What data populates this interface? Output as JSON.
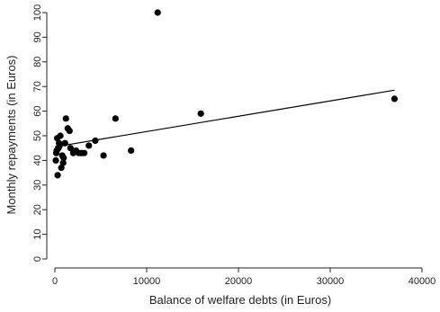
{
  "chart_data": {
    "type": "scatter",
    "title": "",
    "xlabel": "Balance of welfare debts (in Euros)",
    "ylabel": "Monthly repayments (in Euros)",
    "xlim": [
      0,
      40000
    ],
    "ylim": [
      0,
      100
    ],
    "x_ticks": [
      0,
      10000,
      20000,
      30000,
      40000
    ],
    "y_ticks": [
      0,
      10,
      20,
      30,
      40,
      50,
      60,
      70,
      80,
      90,
      100
    ],
    "grid": false,
    "legend": "none",
    "point_color": "#000000",
    "points": [
      {
        "x": 100,
        "y": 40
      },
      {
        "x": 150,
        "y": 43
      },
      {
        "x": 200,
        "y": 44
      },
      {
        "x": 250,
        "y": 49
      },
      {
        "x": 300,
        "y": 34
      },
      {
        "x": 400,
        "y": 45
      },
      {
        "x": 450,
        "y": 47
      },
      {
        "x": 500,
        "y": 46
      },
      {
        "x": 600,
        "y": 50
      },
      {
        "x": 700,
        "y": 37
      },
      {
        "x": 800,
        "y": 42
      },
      {
        "x": 900,
        "y": 39
      },
      {
        "x": 950,
        "y": 41
      },
      {
        "x": 1100,
        "y": 47
      },
      {
        "x": 1200,
        "y": 57
      },
      {
        "x": 1400,
        "y": 53
      },
      {
        "x": 1600,
        "y": 52
      },
      {
        "x": 1700,
        "y": 45
      },
      {
        "x": 2000,
        "y": 43
      },
      {
        "x": 2300,
        "y": 44
      },
      {
        "x": 2600,
        "y": 43
      },
      {
        "x": 2900,
        "y": 43
      },
      {
        "x": 3200,
        "y": 43
      },
      {
        "x": 3700,
        "y": 46
      },
      {
        "x": 4400,
        "y": 48
      },
      {
        "x": 5300,
        "y": 42
      },
      {
        "x": 6600,
        "y": 57
      },
      {
        "x": 8300,
        "y": 44
      },
      {
        "x": 11200,
        "y": 100
      },
      {
        "x": 15900,
        "y": 59
      },
      {
        "x": 37000,
        "y": 65
      }
    ],
    "fit_line": {
      "x": [
        0,
        37000
      ],
      "y": [
        45.5,
        68.5
      ]
    }
  }
}
